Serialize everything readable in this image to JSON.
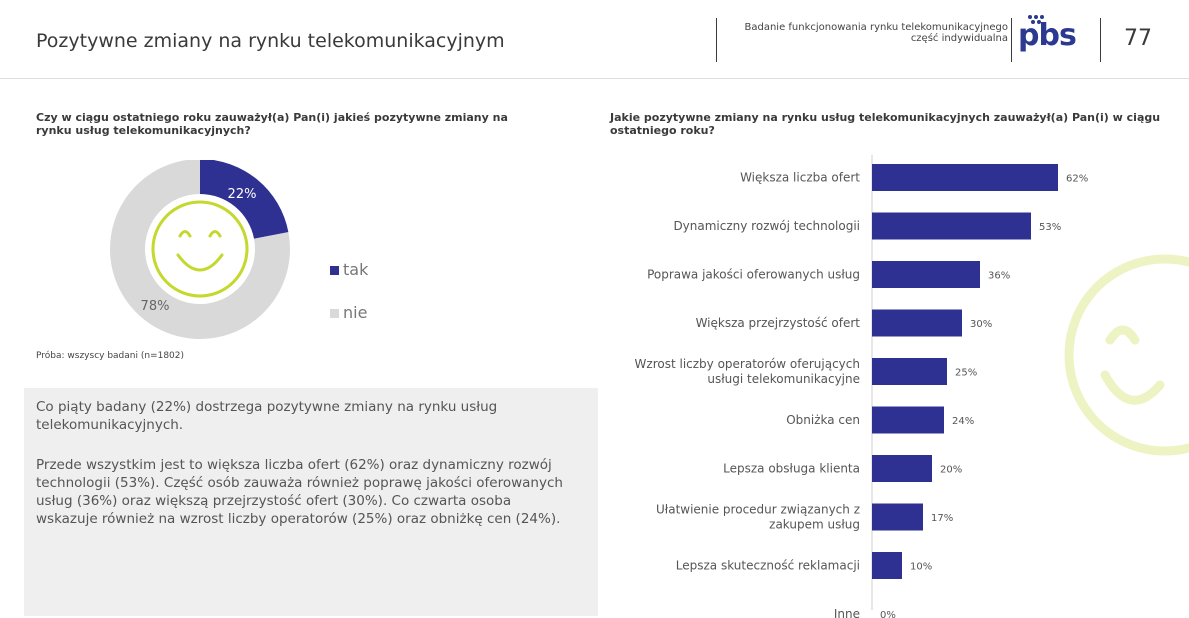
{
  "header": {
    "title": "Pozytywne zmiany na rynku telekomunikacyjnym",
    "study_line1": "Badanie funkcjonowania rynku telekomunikacyjnego",
    "study_line2": "część indywidualna",
    "logo": "pbs",
    "page_number": "77"
  },
  "left": {
    "question": "Czy w ciągu ostatniego roku zauważył(a) Pan(i) jakieś pozytywne zmiany na rynku usług telekomunikacyjnych?",
    "sample_note": "Próba: wszyscy badani (n=1802)",
    "summary_p1": "Co piąty badany (22%) dostrzega pozytywne zmiany na rynku usług telekomunikacyjnych.",
    "summary_p2": "Przede wszystkim jest to większa liczba ofert (62%) oraz dynamiczny rozwój technologii (53%). Część osób zauważa również poprawę jakości oferowanych usług (36%) oraz  większą przejrzystość ofert (30%). Co czwarta osoba wskazuje również na wzrost liczby operatorów (25%) oraz obniżkę cen (24%)."
  },
  "right": {
    "question": "Jakie pozytywne zmiany na rynku usług telekomunikacyjnych zauważył(a) Pan(i) w ciągu ostatniego roku?"
  },
  "colors": {
    "accent": "#2e3192",
    "grey": "#d9d9d9",
    "smiley": "#c4d82e",
    "smiley_faint": "#eef3c4"
  },
  "icons": [
    "smiley-icon",
    "pbs-logo"
  ],
  "chart_data": [
    {
      "type": "pie",
      "style": "donut",
      "categories": [
        "tak",
        "nie"
      ],
      "values": [
        22,
        78
      ],
      "labels": [
        "22%",
        "78%"
      ],
      "legend": "right"
    },
    {
      "type": "bar",
      "orientation": "horizontal",
      "categories": [
        [
          "Większa liczba ofert"
        ],
        [
          "Dynamiczny rozwój technologii"
        ],
        [
          "Poprawa jakości oferowanych usług"
        ],
        [
          "Większa przejrzystość ofert"
        ],
        [
          "Wzrost liczby operatorów oferujących",
          "usługi telekomunikacyjne"
        ],
        [
          "Obniżka cen"
        ],
        [
          "Lepsza obsługa klienta"
        ],
        [
          "Ułatwienie procedur związanych z",
          "zakupem usług"
        ],
        [
          "Lepsza skuteczność reklamacji"
        ],
        [
          "Inne"
        ]
      ],
      "values": [
        62,
        53,
        36,
        30,
        25,
        24,
        20,
        17,
        10,
        0
      ],
      "labels": [
        "62%",
        "53%",
        "36%",
        "30%",
        "25%",
        "24%",
        "20%",
        "17%",
        "10%",
        "0%"
      ],
      "xlim": [
        0,
        100
      ]
    }
  ]
}
